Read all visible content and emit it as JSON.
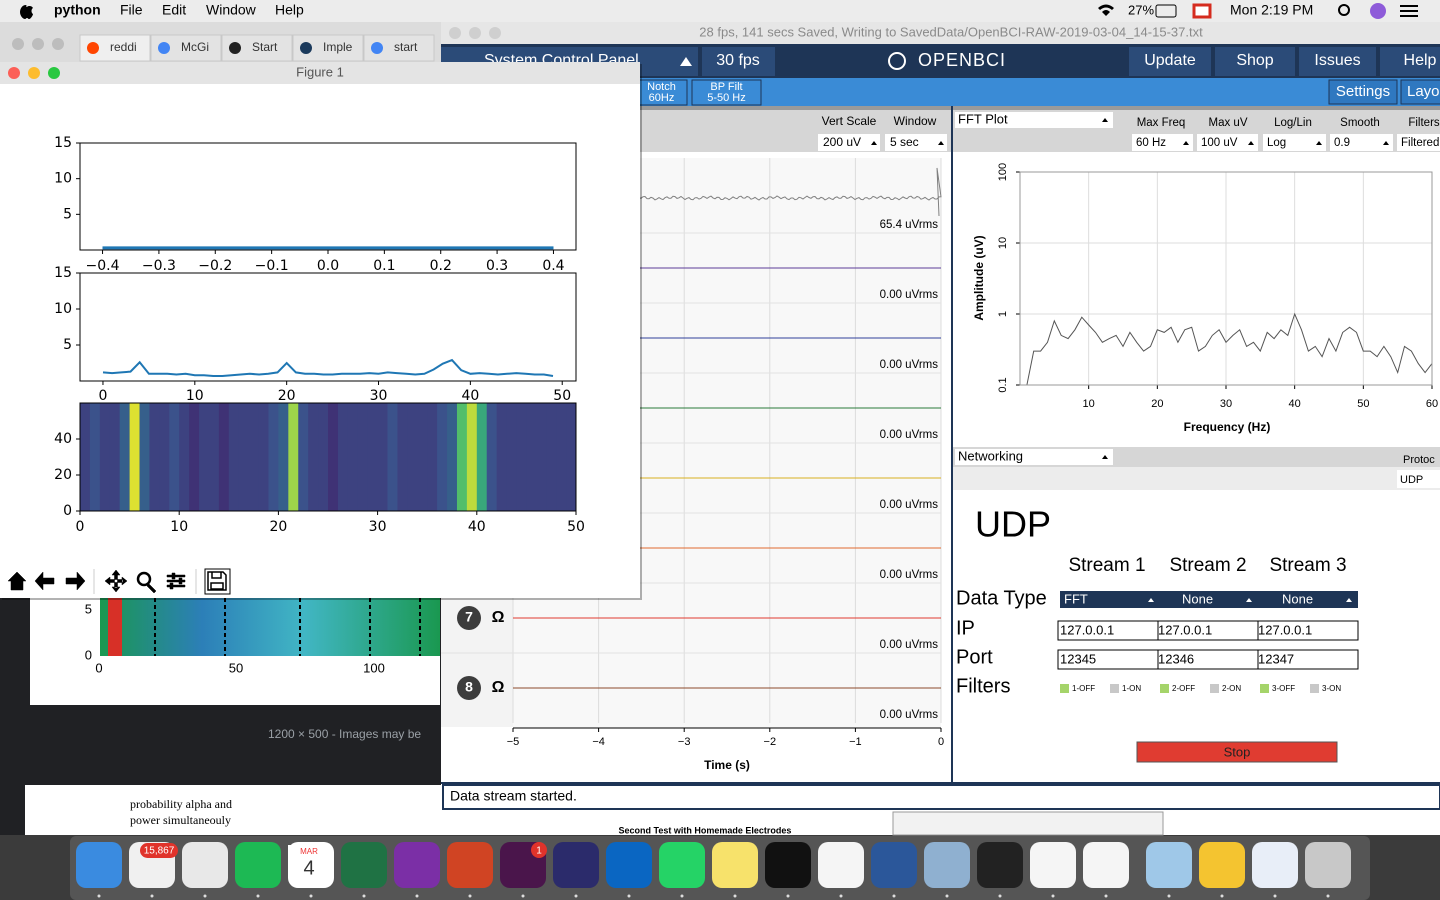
{
  "menubar": {
    "app": "python",
    "menus": [
      "File",
      "Edit",
      "Window",
      "Help"
    ],
    "battery": "27%",
    "clock": "Mon 2:19 PM"
  },
  "browser": {
    "tabs": [
      "reddi",
      "McGi",
      "Start",
      "Imple",
      "start"
    ],
    "bg_plot": {
      "yticks": [
        "5",
        "0"
      ],
      "xticks": [
        "0",
        "50",
        "100"
      ]
    },
    "image_size": "1200 × 500 - Images may be",
    "snippet": [
      "probability alpha and",
      "power simultaneouly"
    ],
    "caption": "Second Test with Homemade Electrodes"
  },
  "figure": {
    "title": "Figure 1",
    "plots": [
      {
        "type": "line",
        "color": "#1f77b4",
        "x": [
          -0.4,
          0.4
        ],
        "values": [
          0.3,
          0.3
        ],
        "xlim": [
          -0.44,
          0.44
        ],
        "ylim": [
          0,
          15
        ],
        "yticks": [
          5,
          10,
          15
        ],
        "xticks": [
          {
            "value": -0.4,
            "label": "−0.4"
          },
          {
            "value": -0.3,
            "label": "−0.3"
          },
          {
            "value": -0.2,
            "label": "−0.2"
          },
          {
            "value": -0.1,
            "label": "−0.1"
          },
          {
            "value": 0,
            "label": "0.0"
          },
          0.1,
          0.2,
          0.3,
          0.4
        ]
      },
      {
        "type": "line",
        "color": "#1f77b4",
        "x": [
          0,
          1,
          2,
          3,
          4,
          5,
          6,
          7,
          8,
          9,
          10,
          11,
          12,
          13,
          14,
          15,
          16,
          17,
          18,
          19,
          20,
          21,
          22,
          23,
          24,
          25,
          26,
          27,
          28,
          29,
          30,
          31,
          32,
          33,
          34,
          35,
          36,
          37,
          38,
          39,
          40,
          41,
          42,
          43,
          44,
          45,
          46,
          47,
          48,
          49
        ],
        "values": [
          1.2,
          1.1,
          1.2,
          1.3,
          2.6,
          1.0,
          1.0,
          1.0,
          0.9,
          1.0,
          0.8,
          0.8,
          0.7,
          0.7,
          0.8,
          0.9,
          1.0,
          0.9,
          1.0,
          1.2,
          2.5,
          1.2,
          1.0,
          1.0,
          0.9,
          0.9,
          1.0,
          1.0,
          1.0,
          1.1,
          1.0,
          1.2,
          1.1,
          1.0,
          0.9,
          1.0,
          1.6,
          2.4,
          2.9,
          1.5,
          1.0,
          1.1,
          1.0,
          0.9,
          1.0,
          1.1,
          1.0,
          0.9,
          0.9,
          0.7
        ],
        "xlim": [
          -2.5,
          51.5
        ],
        "ylim": [
          0,
          15
        ],
        "yticks": [
          5,
          10,
          15
        ],
        "xticks": [
          0,
          10,
          20,
          30,
          40,
          50
        ]
      },
      {
        "type": "heatmap",
        "values": [
          0.2,
          0.25,
          0.2,
          0.2,
          0.3,
          0.95,
          0.3,
          0.2,
          0.2,
          0.25,
          0.2,
          0.15,
          0.2,
          0.2,
          0.15,
          0.2,
          0.2,
          0.2,
          0.2,
          0.25,
          0.3,
          0.85,
          0.25,
          0.2,
          0.2,
          0.15,
          0.2,
          0.2,
          0.2,
          0.2,
          0.2,
          0.25,
          0.2,
          0.2,
          0.2,
          0.2,
          0.25,
          0.3,
          0.7,
          0.9,
          0.6,
          0.25,
          0.2,
          0.2,
          0.2,
          0.2,
          0.2,
          0.2,
          0.2,
          0.2
        ],
        "xlim": [
          0,
          50
        ],
        "ylim": [
          0,
          60
        ],
        "yticks": [
          0,
          20,
          40
        ],
        "xticks": [
          0,
          10,
          20,
          30,
          40,
          50
        ]
      }
    ]
  },
  "openbci": {
    "title": "28 fps, 141 secs Saved, Writing to SavedData/OpenBCI-RAW-2019-03-04_14-15-37.txt",
    "control_panel": "System Control Panel",
    "fps": "30 fps",
    "logo": "OPENBCI",
    "buttons": [
      "Update",
      "Shop",
      "Issues",
      "Help"
    ],
    "notch": [
      "Notch",
      "60Hz"
    ],
    "bp_filter": [
      "BP Filt",
      "5-50 Hz"
    ],
    "settings": "Settings",
    "layout": "Layo",
    "status": "Data stream started."
  },
  "timeseries": {
    "type": "axis",
    "vert_scale_label": "Vert Scale",
    "window_label": "Window",
    "vert_scale": "200 uV",
    "window": "5 sec",
    "rms": [
      "65.4 uVrms",
      "0.00 uVrms",
      "0.00 uVrms",
      "0.00 uVrms",
      "0.00 uVrms",
      "0.00 uVrms",
      "0.00 uVrms",
      "0.00 uVrms"
    ],
    "channels": [
      "7",
      "8"
    ],
    "impedance": "Ω",
    "xlim": [
      -5,
      0
    ],
    "xticks": [
      {
        "value": -5,
        "label": "−5"
      },
      {
        "value": -4,
        "label": "−4"
      },
      {
        "value": -3,
        "label": "−3"
      },
      {
        "value": -2,
        "label": "−2"
      },
      {
        "value": -1,
        "label": "−1"
      },
      0
    ],
    "xlabel": "Time (s)"
  },
  "fft": {
    "type": "line",
    "panel": "FFT Plot",
    "color": "#555555",
    "log_y": true,
    "settings_labels": [
      "Max Freq",
      "Max uV",
      "Log/Lin",
      "Smooth",
      "Filters"
    ],
    "settings_values": [
      "60 Hz",
      "100 uV",
      "Log",
      "0.9",
      "Filtered"
    ],
    "x": [
      1,
      2,
      3,
      4,
      5,
      6,
      7,
      8,
      9,
      10,
      11,
      12,
      13,
      14,
      15,
      16,
      17,
      18,
      19,
      20,
      21,
      22,
      23,
      24,
      25,
      26,
      27,
      28,
      29,
      30,
      31,
      32,
      33,
      34,
      35,
      36,
      37,
      38,
      39,
      40,
      41,
      42,
      43,
      44,
      45,
      46,
      47,
      48,
      49,
      50,
      51,
      52,
      53,
      54,
      55,
      56,
      57,
      58,
      59,
      60
    ],
    "values": [
      0.1,
      0.3,
      0.3,
      0.4,
      0.8,
      0.5,
      0.45,
      0.6,
      0.9,
      0.7,
      0.55,
      0.4,
      0.45,
      0.5,
      0.35,
      0.55,
      0.4,
      0.3,
      0.35,
      0.6,
      0.55,
      0.65,
      0.4,
      0.6,
      0.65,
      0.3,
      0.35,
      0.5,
      0.6,
      0.4,
      0.5,
      0.6,
      0.35,
      0.4,
      0.3,
      0.55,
      0.45,
      0.6,
      0.5,
      1.0,
      0.6,
      0.3,
      0.35,
      0.25,
      0.45,
      0.3,
      0.55,
      0.65,
      0.55,
      0.3,
      0.3,
      0.25,
      0.35,
      0.25,
      0.15,
      0.35,
      0.3,
      0.2,
      0.15,
      0.2
    ],
    "xlim": [
      0,
      60
    ],
    "ylim": [
      0.1,
      100
    ],
    "xticks": [
      10,
      20,
      30,
      40,
      50,
      60
    ],
    "yticks": [
      0.1,
      1,
      10,
      100
    ],
    "xlabel": "Frequency (Hz)",
    "ylabel": "Amplitude (uV)"
  },
  "networking": {
    "panel": "Networking",
    "protocol_label": "Protoc",
    "protocol": "UDP",
    "heading": "UDP",
    "streams": [
      "Stream 1",
      "Stream 2",
      "Stream 3"
    ],
    "row_labels": [
      "Data Type",
      "IP",
      "Port",
      "Filters"
    ],
    "data_types": [
      "FFT",
      "None",
      "None"
    ],
    "ips": [
      "127.0.0.1",
      "127.0.0.1",
      "127.0.0.1"
    ],
    "ports": [
      "12345",
      "12346",
      "12347"
    ],
    "filters": [
      "1-OFF",
      "1-ON",
      "2-OFF",
      "2-ON",
      "3-OFF",
      "3-ON"
    ],
    "stop": "Stop"
  },
  "dock": {
    "mail_badge": "15,867",
    "slack_badge": "1",
    "calendar_month": "MAR",
    "calendar_day": "4"
  }
}
